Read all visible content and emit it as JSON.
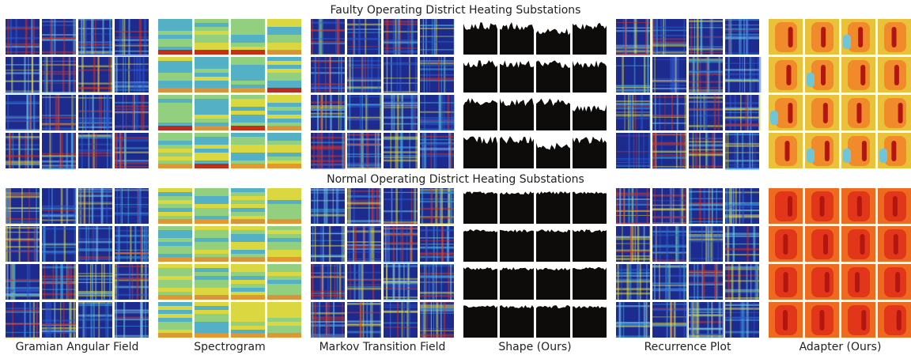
{
  "sections": [
    {
      "title": "Faulty Operating District Heating Substations"
    },
    {
      "title": "Normal Operating District Heating Substations"
    }
  ],
  "columns": [
    {
      "label": "Gramian Angular Field"
    },
    {
      "label": "Spectrogram"
    },
    {
      "label": "Markov Transition Field"
    },
    {
      "label": "Shape (Ours)"
    },
    {
      "label": "Recurrence Plot"
    },
    {
      "label": "Adapter  (Ours)"
    }
  ]
}
